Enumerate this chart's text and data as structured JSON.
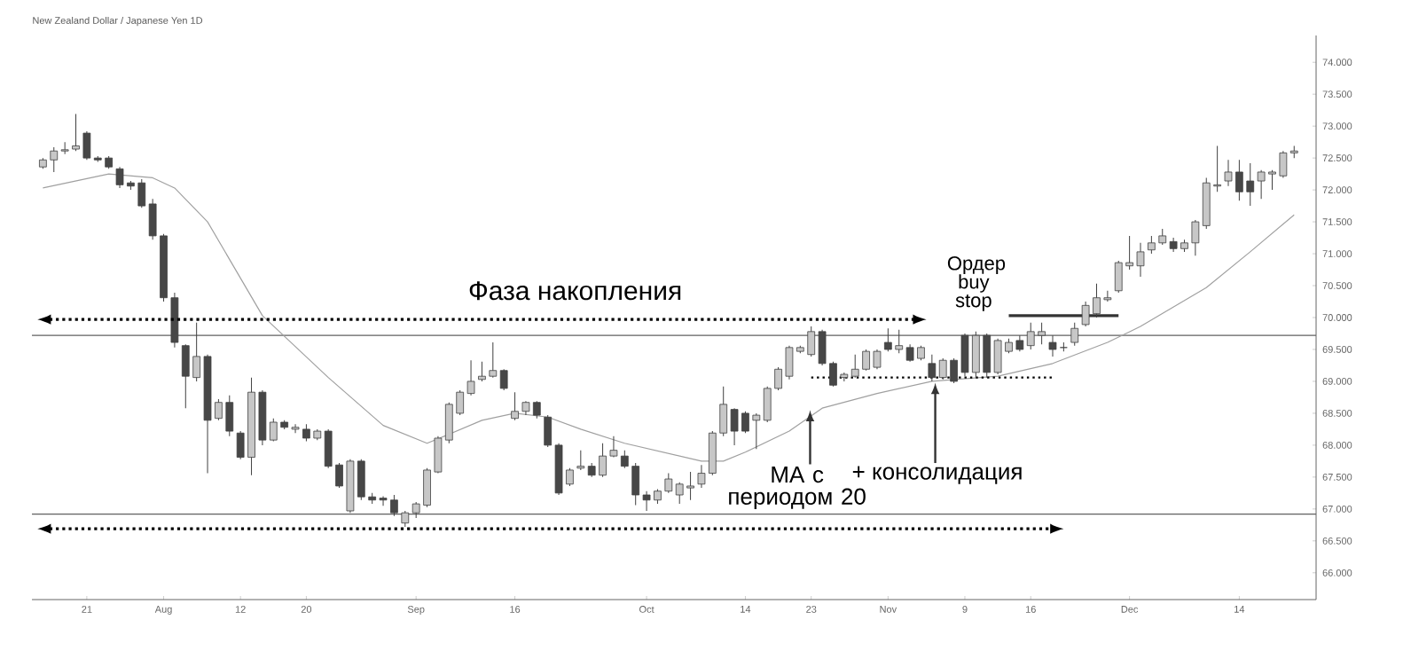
{
  "chart_data": {
    "type": "candlestick",
    "title": "New Zealand Dollar / Japanese Yen 1D",
    "categories": [
      null,
      null,
      null,
      null,
      "21",
      null,
      null,
      null,
      null,
      null,
      null,
      "Aug",
      null,
      null,
      null,
      null,
      null,
      null,
      "12",
      null,
      null,
      null,
      null,
      null,
      "20",
      null,
      null,
      null,
      null,
      null,
      null,
      null,
      null,
      null,
      "Sep",
      null,
      null,
      null,
      null,
      null,
      null,
      null,
      null,
      "16",
      null,
      null,
      null,
      null,
      null,
      null,
      null,
      null,
      null,
      null,
      null,
      "Oct",
      null,
      null,
      null,
      null,
      null,
      null,
      null,
      null,
      "14",
      null,
      null,
      null,
      null,
      null,
      "23",
      null,
      null,
      null,
      null,
      null,
      null,
      "Nov",
      null,
      null,
      null,
      null,
      null,
      null,
      "9",
      null,
      null,
      null,
      null,
      null,
      "16",
      null,
      null,
      null,
      null,
      null,
      null,
      null,
      null,
      "Dec",
      null,
      null,
      null,
      null,
      null,
      null,
      null,
      null,
      null,
      "14",
      null,
      null,
      null,
      null,
      null
    ],
    "ohlc": [
      [
        72.36,
        72.5,
        72.33,
        72.47
      ],
      [
        72.47,
        72.67,
        72.28,
        72.61
      ],
      [
        72.61,
        72.75,
        72.56,
        72.63
      ],
      [
        72.64,
        73.19,
        72.61,
        72.69
      ],
      [
        72.89,
        72.92,
        72.47,
        72.5
      ],
      [
        72.5,
        72.53,
        72.44,
        72.47
      ],
      [
        72.5,
        72.53,
        72.33,
        72.36
      ],
      [
        72.33,
        72.36,
        72.03,
        72.08
      ],
      [
        72.11,
        72.14,
        72.0,
        72.06
      ],
      [
        72.11,
        72.17,
        71.72,
        71.75
      ],
      [
        71.78,
        71.86,
        71.22,
        71.28
      ],
      [
        71.28,
        71.31,
        70.25,
        70.31
      ],
      [
        70.31,
        70.39,
        69.53,
        69.61
      ],
      [
        69.56,
        69.58,
        68.58,
        69.08
      ],
      [
        69.06,
        69.92,
        69.0,
        69.39
      ],
      [
        69.39,
        69.42,
        67.56,
        68.39
      ],
      [
        68.42,
        68.72,
        68.39,
        68.67
      ],
      [
        68.67,
        68.78,
        68.14,
        68.22
      ],
      [
        68.19,
        68.22,
        67.78,
        67.81
      ],
      [
        67.81,
        69.06,
        67.53,
        68.83
      ],
      [
        68.83,
        68.86,
        68.0,
        68.08
      ],
      [
        68.08,
        68.42,
        68.06,
        68.36
      ],
      [
        68.36,
        68.39,
        68.25,
        68.28
      ],
      [
        68.25,
        68.33,
        68.19,
        68.28
      ],
      [
        68.25,
        68.33,
        68.06,
        68.11
      ],
      [
        68.11,
        68.25,
        68.08,
        68.22
      ],
      [
        68.22,
        68.25,
        67.64,
        67.67
      ],
      [
        67.69,
        67.72,
        67.33,
        67.36
      ],
      [
        66.97,
        67.78,
        66.94,
        67.75
      ],
      [
        67.75,
        67.78,
        67.14,
        67.19
      ],
      [
        67.19,
        67.25,
        67.08,
        67.14
      ],
      [
        67.17,
        67.2,
        67.05,
        67.14
      ],
      [
        67.14,
        67.22,
        66.89,
        66.94
      ],
      [
        66.78,
        66.97,
        66.72,
        66.94
      ],
      [
        66.94,
        67.11,
        66.86,
        67.08
      ],
      [
        67.06,
        67.64,
        67.03,
        67.61
      ],
      [
        67.58,
        68.14,
        67.56,
        68.11
      ],
      [
        68.08,
        68.67,
        68.03,
        68.64
      ],
      [
        68.5,
        68.86,
        68.47,
        68.83
      ],
      [
        68.81,
        69.33,
        68.78,
        69.0
      ],
      [
        69.03,
        69.31,
        69.0,
        69.08
      ],
      [
        69.08,
        69.61,
        69.06,
        69.17
      ],
      [
        69.17,
        69.19,
        68.86,
        68.89
      ],
      [
        68.42,
        68.83,
        68.39,
        68.53
      ],
      [
        68.53,
        68.69,
        68.47,
        68.67
      ],
      [
        68.67,
        68.69,
        68.42,
        68.47
      ],
      [
        68.44,
        68.47,
        67.97,
        68.0
      ],
      [
        68.0,
        68.03,
        67.22,
        67.25
      ],
      [
        67.39,
        67.64,
        67.36,
        67.61
      ],
      [
        67.64,
        67.92,
        67.61,
        67.67
      ],
      [
        67.67,
        67.72,
        67.5,
        67.53
      ],
      [
        67.53,
        68.03,
        67.5,
        67.83
      ],
      [
        67.83,
        68.14,
        67.81,
        67.92
      ],
      [
        67.83,
        67.92,
        67.64,
        67.67
      ],
      [
        67.67,
        67.72,
        67.06,
        67.22
      ],
      [
        67.22,
        67.28,
        66.97,
        67.14
      ],
      [
        67.14,
        67.31,
        67.08,
        67.28
      ],
      [
        67.28,
        67.56,
        67.25,
        67.47
      ],
      [
        67.22,
        67.42,
        67.08,
        67.39
      ],
      [
        67.33,
        67.58,
        67.14,
        67.36
      ],
      [
        67.39,
        67.69,
        67.33,
        67.56
      ],
      [
        67.56,
        68.22,
        67.53,
        68.19
      ],
      [
        68.19,
        68.92,
        68.14,
        68.64
      ],
      [
        68.56,
        68.58,
        68.0,
        68.22
      ],
      [
        68.5,
        68.53,
        68.19,
        68.22
      ],
      [
        68.39,
        68.5,
        67.94,
        68.47
      ],
      [
        68.39,
        68.92,
        68.36,
        68.89
      ],
      [
        68.89,
        69.22,
        68.86,
        69.19
      ],
      [
        69.08,
        69.56,
        69.03,
        69.53
      ],
      [
        69.47,
        69.56,
        69.44,
        69.53
      ],
      [
        69.42,
        69.86,
        69.39,
        69.78
      ],
      [
        69.78,
        69.81,
        69.25,
        69.28
      ],
      [
        69.28,
        69.31,
        68.92,
        68.94
      ],
      [
        69.06,
        69.14,
        69.0,
        69.11
      ],
      [
        69.08,
        69.42,
        69.06,
        69.19
      ],
      [
        69.19,
        69.5,
        69.17,
        69.47
      ],
      [
        69.22,
        69.5,
        69.19,
        69.47
      ],
      [
        69.61,
        69.83,
        69.47,
        69.5
      ],
      [
        69.5,
        69.81,
        69.44,
        69.56
      ],
      [
        69.53,
        69.58,
        69.31,
        69.33
      ],
      [
        69.36,
        69.56,
        69.33,
        69.53
      ],
      [
        69.28,
        69.42,
        69.0,
        69.06
      ],
      [
        69.06,
        69.36,
        69.03,
        69.33
      ],
      [
        69.33,
        69.36,
        68.97,
        69.0
      ],
      [
        69.72,
        69.75,
        69.08,
        69.14
      ],
      [
        69.14,
        69.78,
        69.06,
        69.72
      ],
      [
        69.72,
        69.75,
        69.06,
        69.14
      ],
      [
        69.14,
        69.67,
        69.11,
        69.64
      ],
      [
        69.47,
        69.67,
        69.44,
        69.61
      ],
      [
        69.64,
        69.72,
        69.47,
        69.5
      ],
      [
        69.56,
        69.92,
        69.5,
        69.78
      ],
      [
        69.72,
        69.92,
        69.58,
        69.78
      ],
      [
        69.61,
        69.72,
        69.39,
        69.5
      ],
      [
        69.53,
        69.61,
        69.47,
        69.53
      ],
      [
        69.61,
        69.92,
        69.56,
        69.83
      ],
      [
        69.89,
        70.25,
        69.86,
        70.19
      ],
      [
        70.06,
        70.53,
        70.0,
        70.31
      ],
      [
        70.28,
        70.42,
        70.25,
        70.31
      ],
      [
        70.42,
        70.89,
        70.39,
        70.86
      ],
      [
        70.81,
        71.28,
        70.75,
        70.86
      ],
      [
        70.81,
        71.17,
        70.64,
        71.03
      ],
      [
        71.06,
        71.28,
        71.0,
        71.17
      ],
      [
        71.17,
        71.39,
        71.14,
        71.28
      ],
      [
        71.19,
        71.25,
        71.03,
        71.08
      ],
      [
        71.08,
        71.22,
        71.03,
        71.17
      ],
      [
        71.17,
        71.53,
        70.97,
        71.5
      ],
      [
        71.44,
        72.19,
        71.39,
        72.11
      ],
      [
        72.06,
        72.69,
        71.97,
        72.08
      ],
      [
        72.14,
        72.47,
        72.06,
        72.28
      ],
      [
        72.28,
        72.47,
        71.83,
        71.97
      ],
      [
        72.14,
        72.42,
        71.75,
        71.97
      ],
      [
        72.14,
        72.31,
        71.86,
        72.28
      ],
      [
        72.25,
        72.31,
        72.0,
        72.28
      ],
      [
        72.22,
        72.61,
        72.19,
        72.58
      ],
      [
        72.58,
        72.69,
        72.5,
        72.61
      ]
    ],
    "series": [
      {
        "type": "line",
        "color": "#a0a0a0",
        "values": [
          72.03,
          null,
          null,
          null,
          null,
          null,
          72.25,
          null,
          null,
          null,
          72.19,
          null,
          72.03,
          null,
          null,
          71.5,
          null,
          null,
          null,
          null,
          70.03,
          null,
          null,
          null,
          null,
          null,
          69.06,
          null,
          null,
          null,
          null,
          68.31,
          null,
          null,
          null,
          68.03,
          null,
          68.17,
          null,
          null,
          68.39,
          null,
          null,
          68.5,
          null,
          null,
          68.44,
          null,
          null,
          68.25,
          null,
          null,
          null,
          68.03,
          null,
          null,
          null,
          null,
          null,
          null,
          67.75,
          null,
          67.75,
          null,
          67.89,
          null,
          null,
          null,
          68.22,
          null,
          null,
          68.58,
          null,
          null,
          null,
          null,
          68.81,
          null,
          null,
          null,
          null,
          69.0,
          null,
          null,
          null,
          null,
          null,
          69.08,
          null,
          null,
          null,
          null,
          69.28,
          null,
          null,
          null,
          null,
          69.61,
          null,
          null,
          69.86,
          null,
          null,
          null,
          null,
          null,
          70.47,
          null,
          null,
          null,
          71.03,
          null,
          null,
          null,
          71.61
        ]
      },
      {
        "type": "line",
        "color": "#000000",
        "line_style": "dotted",
        "values": [
          null,
          null,
          null,
          null,
          null,
          null,
          null,
          null,
          null,
          null,
          null,
          null,
          null,
          null,
          null,
          null,
          null,
          null,
          null,
          null,
          null,
          null,
          null,
          null,
          null,
          null,
          null,
          null,
          null,
          null,
          null,
          null,
          null,
          null,
          null,
          null,
          null,
          null,
          null,
          null,
          null,
          null,
          null,
          null,
          null,
          null,
          null,
          null,
          null,
          null,
          null,
          null,
          null,
          null,
          null,
          null,
          null,
          null,
          null,
          null,
          null,
          null,
          null,
          null,
          null,
          null,
          null,
          null,
          null,
          null,
          69.06,
          null,
          null,
          null,
          null,
          null,
          null,
          null,
          null,
          null,
          null,
          null,
          null,
          null,
          null,
          null,
          null,
          null,
          null,
          null,
          null,
          null,
          69.06,
          null,
          null,
          null,
          null,
          null,
          null,
          null,
          null,
          null,
          null,
          null,
          null,
          null,
          null,
          null,
          null,
          null,
          null,
          null,
          null,
          null,
          null
        ]
      },
      {
        "type": "line",
        "color": "#333333",
        "line_style": "solid",
        "values": [
          null,
          null,
          null,
          null,
          null,
          null,
          null,
          null,
          null,
          null,
          null,
          null,
          null,
          null,
          null,
          null,
          null,
          null,
          null,
          null,
          null,
          null,
          null,
          null,
          null,
          null,
          null,
          null,
          null,
          null,
          null,
          null,
          null,
          null,
          null,
          null,
          null,
          null,
          null,
          null,
          null,
          null,
          null,
          null,
          null,
          null,
          null,
          null,
          null,
          null,
          null,
          null,
          null,
          null,
          null,
          null,
          null,
          null,
          null,
          null,
          null,
          null,
          null,
          null,
          null,
          null,
          null,
          null,
          null,
          null,
          null,
          null,
          null,
          null,
          null,
          null,
          null,
          null,
          null,
          null,
          null,
          null,
          null,
          null,
          null,
          null,
          null,
          null,
          70.03,
          null,
          null,
          null,
          null,
          null,
          null,
          null,
          null,
          null,
          70.03,
          null,
          null,
          null,
          null,
          null,
          null,
          null,
          null,
          null,
          null,
          null,
          null,
          null,
          null,
          null,
          null
        ]
      }
    ],
    "ylim": [
      65.58,
      74.42
    ],
    "yticks": [
      {
        "value": 66,
        "label": "66.000"
      },
      {
        "value": 66.5,
        "label": "66.500"
      },
      {
        "value": 67,
        "label": "67.000"
      },
      {
        "value": 67.5,
        "label": "67.500"
      },
      {
        "value": 68,
        "label": "68.000"
      },
      {
        "value": 68.5,
        "label": "68.500"
      },
      {
        "value": 69,
        "label": "69.000"
      },
      {
        "value": 69.5,
        "label": "69.500"
      },
      {
        "value": 70,
        "label": "70.000"
      },
      {
        "value": 70.5,
        "label": "70.500"
      },
      {
        "value": 71,
        "label": "71.000"
      },
      {
        "value": 71.5,
        "label": "71.500"
      },
      {
        "value": 72,
        "label": "72.000"
      },
      {
        "value": 72.5,
        "label": "72.500"
      },
      {
        "value": 73,
        "label": "73.000"
      },
      {
        "value": 73.5,
        "label": "73.500"
      },
      {
        "value": 74,
        "label": "74.000"
      }
    ],
    "ref_lines": [
      {
        "axis": "y",
        "value": 69.72,
        "color": "#606060"
      },
      {
        "axis": "y",
        "value": 66.92,
        "color": "#606060"
      }
    ],
    "annotations": [
      "Фаза накопления",
      "Ордер buy stop",
      "MA с периодом 20",
      "+ консолидация"
    ]
  }
}
